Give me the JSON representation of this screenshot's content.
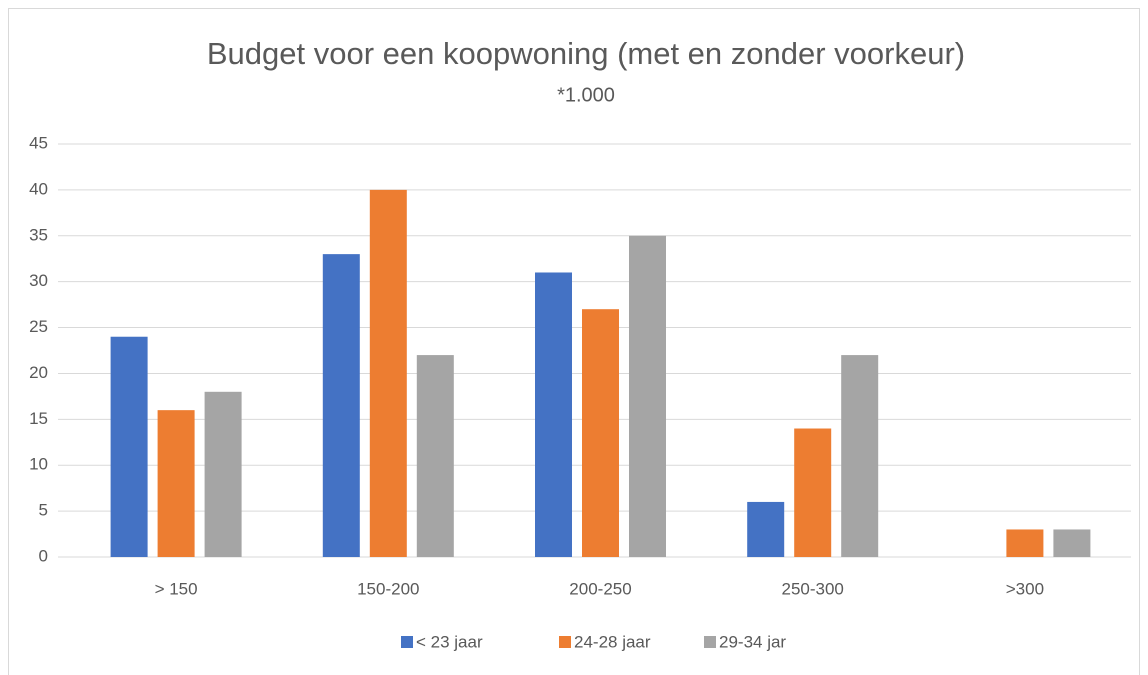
{
  "chart_data": {
    "type": "bar",
    "title": "Budget voor een koopwoning (met en zonder voorkeur)",
    "subtitle": "*1.000",
    "categories": [
      "> 150",
      "150-200",
      "200-250",
      "250-300",
      ">300"
    ],
    "series": [
      {
        "name": "< 23 jaar",
        "color": "#4472c4",
        "values": [
          24,
          33,
          31,
          6,
          0
        ]
      },
      {
        "name": "24-28 jaar",
        "color": "#ed7d31",
        "values": [
          16,
          40,
          27,
          14,
          3
        ]
      },
      {
        "name": "29-34 jar",
        "color": "#a5a5a5",
        "values": [
          18,
          22,
          35,
          22,
          3
        ]
      }
    ],
    "ylim": [
      0,
      45
    ],
    "yticks": [
      0,
      5,
      10,
      15,
      20,
      25,
      30,
      35,
      40,
      45
    ],
    "grid": true,
    "legend": "bottom"
  }
}
